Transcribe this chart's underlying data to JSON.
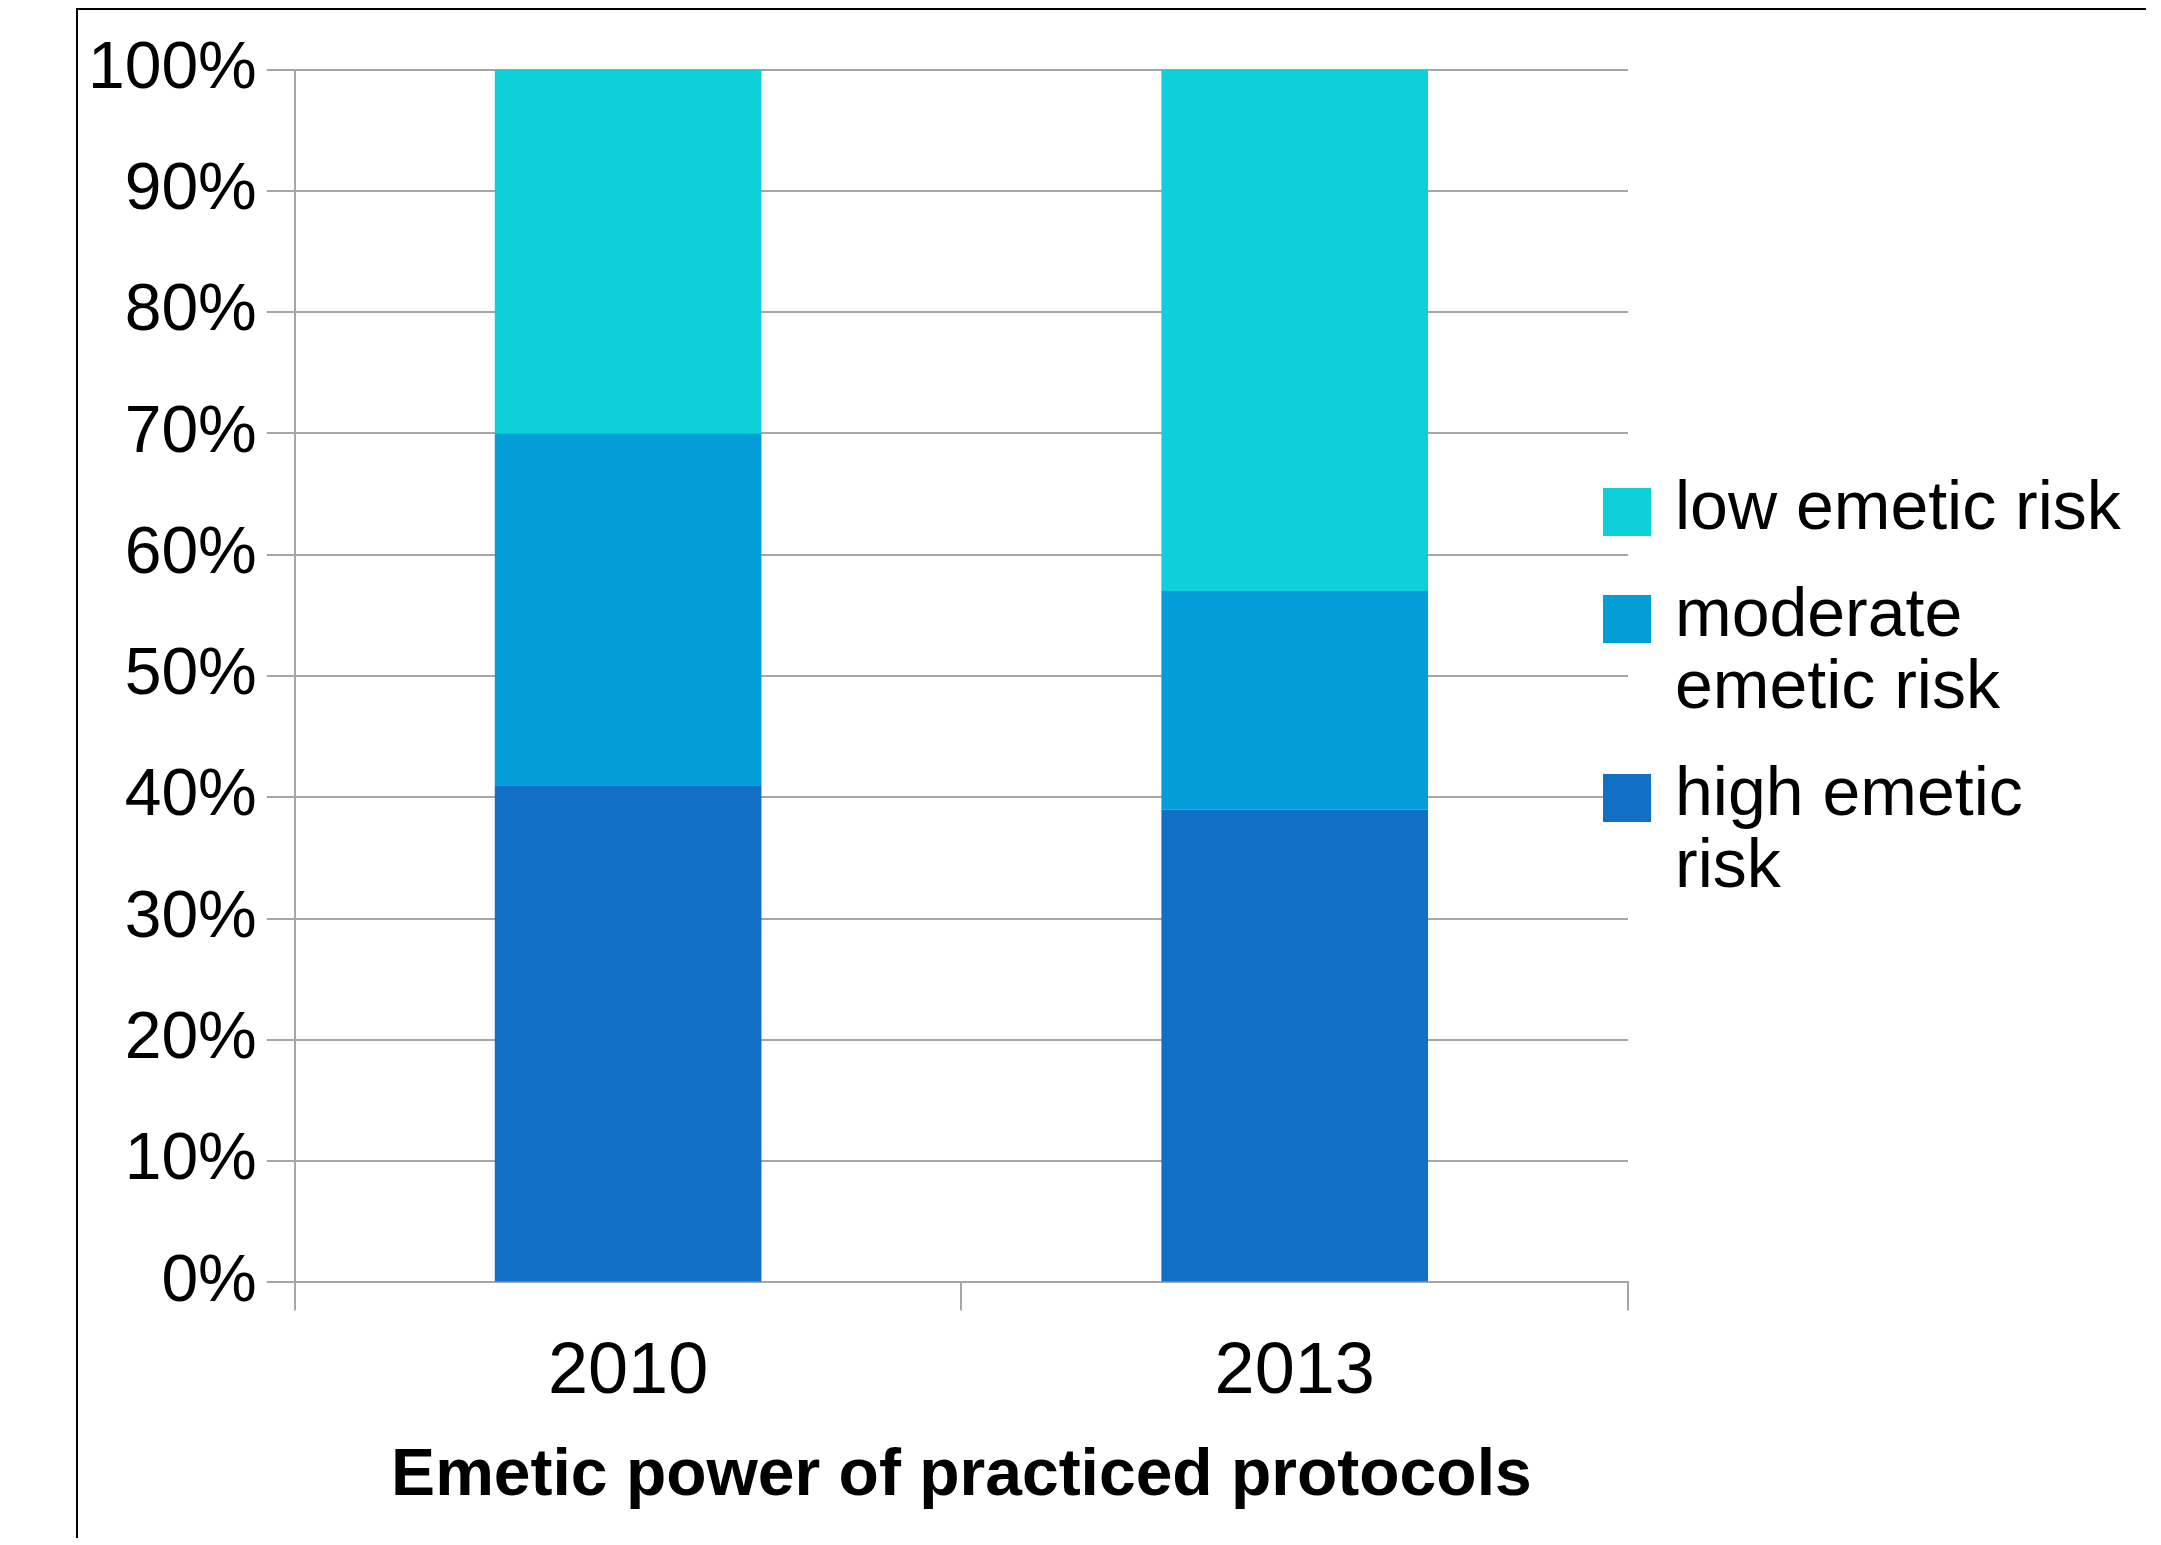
{
  "chart_data": {
    "type": "bar",
    "stacked": true,
    "xlabel": "Emetic power of practiced protocols",
    "categories": [
      "2010",
      "2013"
    ],
    "series": [
      {
        "name": "high emetic risk",
        "color": "#1170c6",
        "values": [
          41,
          39
        ]
      },
      {
        "name": "moderate emetic risk",
        "color": "#039dd8",
        "values": [
          29,
          18
        ]
      },
      {
        "name": "low emetic risk",
        "color": "#0ed0d8",
        "values": [
          30,
          43
        ]
      }
    ],
    "ylim": [
      0,
      100
    ],
    "yticks": [
      {
        "value": 0,
        "label": "0%"
      },
      {
        "value": 10,
        "label": "10%"
      },
      {
        "value": 20,
        "label": "20%"
      },
      {
        "value": 30,
        "label": "30%"
      },
      {
        "value": 40,
        "label": "40%"
      },
      {
        "value": 50,
        "label": "50%"
      },
      {
        "value": 60,
        "label": "60%"
      },
      {
        "value": 70,
        "label": "70%"
      },
      {
        "value": 80,
        "label": "80%"
      },
      {
        "value": 90,
        "label": "90%"
      },
      {
        "value": 100,
        "label": "100%"
      }
    ],
    "grid": "y",
    "legend": "right"
  }
}
